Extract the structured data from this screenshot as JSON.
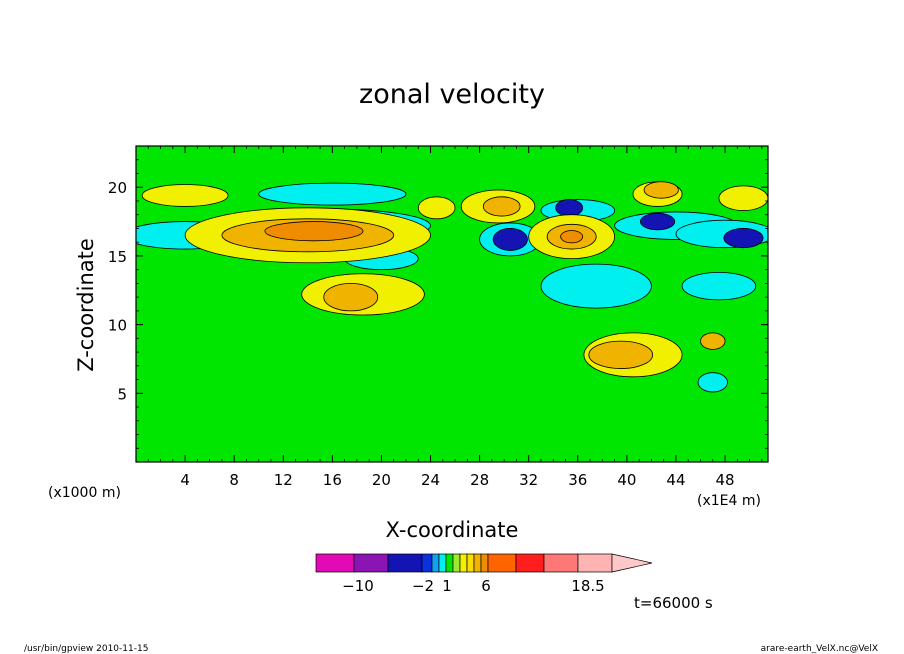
{
  "chart_data": {
    "type": "heatmap",
    "title": "zonal velocity",
    "xlabel": "X-coordinate",
    "ylabel": "Z-coordinate",
    "x_unit_left": "(x1000 m)",
    "x_unit_right": "(x1E4 m)",
    "x_ticks": [
      4,
      8,
      12,
      16,
      20,
      24,
      28,
      32,
      36,
      40,
      44,
      48
    ],
    "y_ticks": [
      5,
      10,
      15,
      20
    ],
    "xlim": [
      0,
      51.5
    ],
    "ylim": [
      0,
      23
    ],
    "time_label": "t=66000 s",
    "colorbar": {
      "labels": [
        {
          "value": -10,
          "text": "−10"
        },
        {
          "value": -2,
          "text": "−2"
        },
        {
          "value": 1,
          "text": "1"
        },
        {
          "value": 6,
          "text": "6"
        },
        {
          "value": 18.5,
          "text": "18.5"
        }
      ],
      "colors": [
        "#e10ab4",
        "#8c14b4",
        "#1414b4",
        "#0a32dc",
        "#14a0f0",
        "#00f0f0",
        "#00e600",
        "#a0e632",
        "#f0f000",
        "#fadc00",
        "#f0b400",
        "#f08c00",
        "#ff6400",
        "#ff1e1e",
        "#ff7878",
        "#ffb4b4",
        "#ffc8c8"
      ]
    },
    "fields": [
      {
        "level": "cyan",
        "color": "#00f0f0",
        "blobs": [
          [
            16,
            19.5,
            6,
            0.8
          ],
          [
            16,
            17.2,
            8,
            1.2
          ],
          [
            4,
            16.5,
            5,
            1.0
          ],
          [
            20,
            14.8,
            3,
            0.8
          ],
          [
            36,
            18.3,
            3,
            0.8
          ],
          [
            44,
            17.2,
            5,
            1.0
          ],
          [
            48,
            16.6,
            4,
            1.0
          ],
          [
            30.5,
            16.2,
            2.5,
            1.2
          ],
          [
            37.5,
            12.8,
            4.5,
            1.6
          ],
          [
            47.5,
            12.8,
            3,
            1.0
          ],
          [
            47,
            5.8,
            1.2,
            0.7
          ]
        ]
      },
      {
        "level": "blue",
        "color": "#1414b4",
        "blobs": [
          [
            30.5,
            16.2,
            1.4,
            0.8
          ],
          [
            35.3,
            18.5,
            1.1,
            0.6
          ],
          [
            42.5,
            17.5,
            1.4,
            0.6
          ],
          [
            49.5,
            16.3,
            1.6,
            0.7
          ]
        ]
      },
      {
        "level": "yellow",
        "color": "#f0f000",
        "blobs": [
          [
            14,
            16.5,
            10,
            2.0
          ],
          [
            4,
            19.4,
            3.5,
            0.8
          ],
          [
            29.5,
            18.6,
            3,
            1.2
          ],
          [
            35.5,
            16.4,
            3.5,
            1.6
          ],
          [
            18.5,
            12.2,
            5,
            1.5
          ],
          [
            40.5,
            7.8,
            4,
            1.6
          ],
          [
            42.5,
            19.5,
            2,
            0.9
          ],
          [
            49.5,
            19.2,
            2,
            0.9
          ],
          [
            24.5,
            18.5,
            1.5,
            0.8
          ]
        ]
      },
      {
        "level": "orange",
        "color": "#f0b400",
        "blobs": [
          [
            14,
            16.5,
            7,
            1.2
          ],
          [
            29.8,
            18.6,
            1.5,
            0.7
          ],
          [
            35.5,
            16.4,
            2,
            0.9
          ],
          [
            17.5,
            12.0,
            2.2,
            1.0
          ],
          [
            39.5,
            7.8,
            2.6,
            1.0
          ],
          [
            42.8,
            19.8,
            1.4,
            0.6
          ],
          [
            47,
            8.8,
            1.0,
            0.6
          ]
        ]
      },
      {
        "level": "darkorange",
        "color": "#f08c00",
        "blobs": [
          [
            14.5,
            16.8,
            4,
            0.7
          ],
          [
            35.5,
            16.4,
            0.9,
            0.45
          ]
        ]
      }
    ]
  },
  "footer": {
    "left": "/usr/bin/gpview   2010-11-15",
    "right": "arare-earth_VelX.nc@VelX"
  }
}
